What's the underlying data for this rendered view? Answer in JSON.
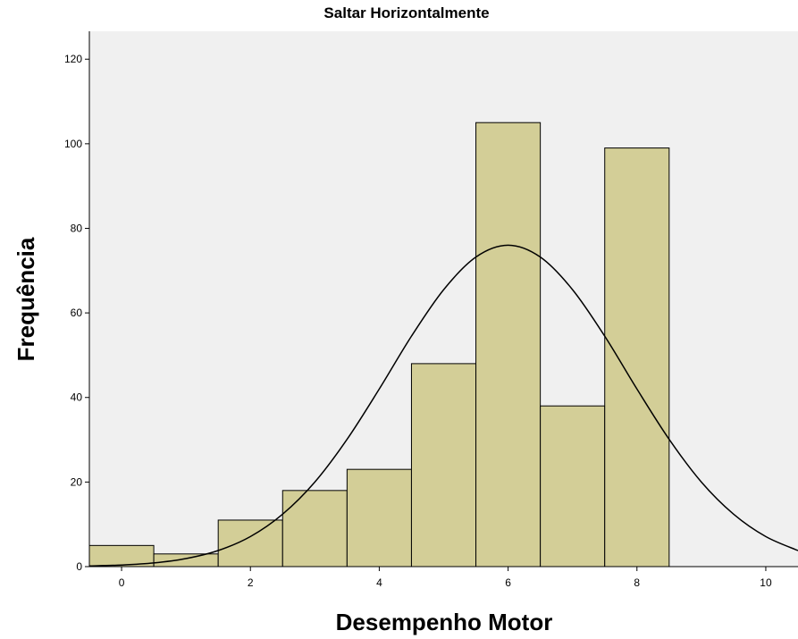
{
  "chart_data": {
    "type": "histogram",
    "title": "Saltar Horizontalmente",
    "x_label": "Desempenho Motor",
    "y_label": "Frequência",
    "bins": [
      -0.5,
      0.5,
      1.5,
      2.5,
      3.5,
      4.5,
      5.5,
      6.5,
      7.5,
      8.5
    ],
    "values": [
      5,
      3,
      11,
      18,
      23,
      48,
      105,
      38,
      99
    ],
    "color": "#d3ce97",
    "curve": {
      "color": "#000000",
      "x": [
        -0.5,
        0,
        0.5,
        1,
        1.5,
        2,
        2.5,
        3,
        3.5,
        4,
        4.5,
        5,
        5.5,
        6,
        6.5,
        7,
        7.5,
        8,
        8.5,
        9,
        9.5,
        10,
        10.5
      ],
      "values": [
        0.15,
        0.37,
        0.86,
        1.9,
        3.8,
        7.1,
        12.4,
        20.0,
        30.1,
        42.0,
        54.5,
        65.5,
        73.2,
        76,
        73.2,
        65.5,
        54.5,
        42.0,
        30.1,
        20.0,
        12.4,
        7.1,
        3.8
      ]
    },
    "xlim": [
      -0.5,
      10.5
    ],
    "xticks": [
      0,
      2,
      4,
      6,
      8,
      10
    ],
    "ylim": [
      0,
      126.6
    ],
    "yticks": [
      0,
      20,
      40,
      60,
      80,
      100,
      120
    ],
    "grid": false
  }
}
